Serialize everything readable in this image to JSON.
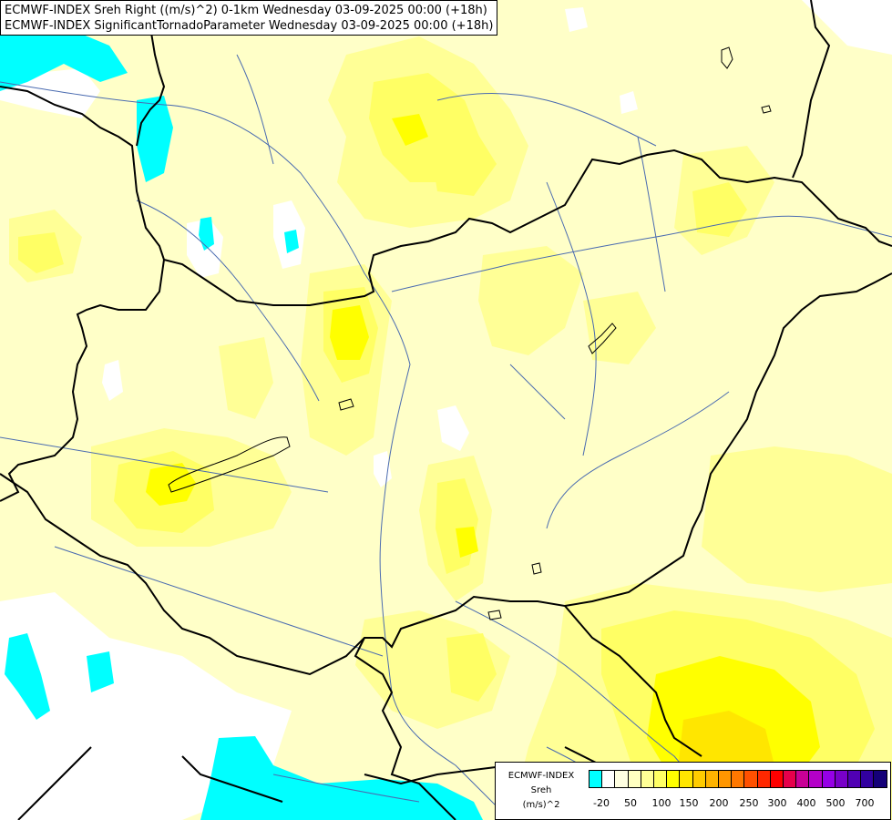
{
  "title": {
    "line1": "ECMWF-INDEX Sreh Right ((m/s)^2) 0-1km Wednesday 03-09-2025 00:00 (+18h)",
    "line2": "ECMWF-INDEX SignificantTornadoParameter Wednesday 03-09-2025 00:00 (+18h)"
  },
  "legend": {
    "line1": "ECMWF-INDEX",
    "line2": "Sreh",
    "line3": "(m/s)^2",
    "ticks": [
      "-20",
      "50",
      "100",
      "150",
      "200",
      "250",
      "300",
      "400",
      "500",
      "700"
    ],
    "colors": [
      "#00ffff",
      "#ffffff",
      "#ffffe1",
      "#ffffc0",
      "#ffff96",
      "#ffff64",
      "#ffff00",
      "#ffe600",
      "#ffcc00",
      "#ffb400",
      "#ff9600",
      "#ff7800",
      "#ff5000",
      "#ff2800",
      "#ff0000",
      "#e6004b",
      "#c80096",
      "#b400c8",
      "#9600e6",
      "#7800c8",
      "#5000b4",
      "#3200a0",
      "#140078"
    ]
  },
  "colors": {
    "base": "#ffffc8",
    "light_yellow": "#ffff96",
    "yellow": "#ffff64",
    "bright_yellow": "#ffff00",
    "gold": "#ffe600",
    "cyan": "#00ffff",
    "border": "#000000",
    "river": "#4a6bb0"
  }
}
